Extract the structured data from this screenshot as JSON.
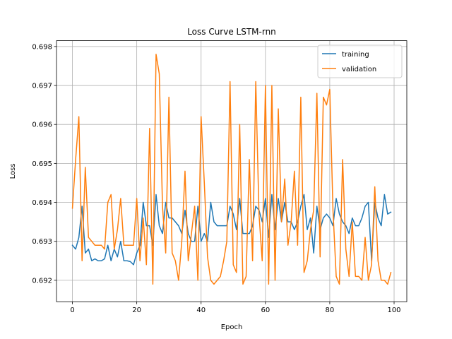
{
  "chart_data": {
    "type": "line",
    "title": "Loss Curve LSTM-rnn",
    "xlabel": "Epoch",
    "ylabel": "Loss",
    "xlim": [
      -4.95,
      103.95
    ],
    "ylim": [
      0.69145,
      0.69815
    ],
    "xticks": [
      0,
      20,
      40,
      60,
      80,
      100
    ],
    "yticks": [
      0.692,
      0.693,
      0.694,
      0.695,
      0.696,
      0.697,
      0.698
    ],
    "grid": true,
    "legend_position": "top-right",
    "x": [
      0,
      1,
      2,
      3,
      4,
      5,
      6,
      7,
      8,
      9,
      10,
      11,
      12,
      13,
      14,
      15,
      16,
      17,
      18,
      19,
      20,
      21,
      22,
      23,
      24,
      25,
      26,
      27,
      28,
      29,
      30,
      31,
      32,
      33,
      34,
      35,
      36,
      37,
      38,
      39,
      40,
      41,
      42,
      43,
      44,
      45,
      46,
      47,
      48,
      49,
      50,
      51,
      52,
      53,
      54,
      55,
      56,
      57,
      58,
      59,
      60,
      61,
      62,
      63,
      64,
      65,
      66,
      67,
      68,
      69,
      70,
      71,
      72,
      73,
      74,
      75,
      76,
      77,
      78,
      79,
      80,
      81,
      82,
      83,
      84,
      85,
      86,
      87,
      88,
      89,
      90,
      91,
      92,
      93,
      94,
      95,
      96,
      97,
      98,
      99
    ],
    "series": [
      {
        "name": "training",
        "color": "#1f77b4",
        "values": [
          0.6929,
          0.6928,
          0.6931,
          0.6939,
          0.6927,
          0.6928,
          0.6925,
          0.69255,
          0.6925,
          0.6925,
          0.69255,
          0.6929,
          0.6925,
          0.6928,
          0.6926,
          0.693,
          0.6925,
          0.6925,
          0.69248,
          0.6924,
          0.6927,
          0.6929,
          0.694,
          0.6934,
          0.6934,
          0.6929,
          0.6942,
          0.6934,
          0.6932,
          0.694,
          0.6936,
          0.6936,
          0.6935,
          0.6934,
          0.6932,
          0.6938,
          0.6932,
          0.693,
          0.693,
          0.6939,
          0.693,
          0.6932,
          0.693,
          0.694,
          0.6935,
          0.6934,
          0.6934,
          0.6934,
          0.6934,
          0.6939,
          0.6937,
          0.6933,
          0.6941,
          0.6932,
          0.6932,
          0.6932,
          0.6934,
          0.6939,
          0.6938,
          0.6935,
          0.6941,
          0.6931,
          0.6942,
          0.6933,
          0.6941,
          0.6935,
          0.694,
          0.6935,
          0.6935,
          0.6933,
          0.6935,
          0.6939,
          0.6942,
          0.6933,
          0.6936,
          0.6927,
          0.6939,
          0.6933,
          0.6936,
          0.6937,
          0.6936,
          0.6934,
          0.6941,
          0.6937,
          0.6935,
          0.6934,
          0.6932,
          0.6936,
          0.6934,
          0.6934,
          0.6936,
          0.6939,
          0.694,
          0.6925,
          0.694,
          0.6936,
          0.6934,
          0.6942,
          0.6937,
          0.69375
        ]
      },
      {
        "name": "validation",
        "color": "#ff7f0e",
        "values": [
          0.69385,
          0.6951,
          0.6962,
          0.6925,
          0.6949,
          0.6931,
          0.693,
          0.6929,
          0.6929,
          0.6929,
          0.6928,
          0.694,
          0.6942,
          0.6928,
          0.6933,
          0.6941,
          0.6929,
          0.6929,
          0.6929,
          0.6929,
          0.6941,
          0.6925,
          0.6936,
          0.6924,
          0.6959,
          0.6919,
          0.6978,
          0.6973,
          0.6939,
          0.6927,
          0.6967,
          0.6927,
          0.6925,
          0.692,
          0.693,
          0.6948,
          0.6925,
          0.6932,
          0.6939,
          0.692,
          0.6962,
          0.6945,
          0.6926,
          0.692,
          0.6919,
          0.692,
          0.6921,
          0.6925,
          0.693,
          0.6971,
          0.6924,
          0.6922,
          0.696,
          0.6919,
          0.6921,
          0.6951,
          0.6925,
          0.6971,
          0.6937,
          0.6925,
          0.697,
          0.6919,
          0.697,
          0.692,
          0.6964,
          0.6935,
          0.6946,
          0.6929,
          0.6935,
          0.6948,
          0.6929,
          0.6967,
          0.6922,
          0.6925,
          0.6933,
          0.6938,
          0.6968,
          0.6926,
          0.6967,
          0.6965,
          0.6969,
          0.6938,
          0.6921,
          0.6919,
          0.6951,
          0.6928,
          0.6921,
          0.6935,
          0.6921,
          0.6921,
          0.692,
          0.6931,
          0.692,
          0.6924,
          0.6944,
          0.6925,
          0.692,
          0.692,
          0.6919,
          0.6922
        ]
      }
    ]
  }
}
